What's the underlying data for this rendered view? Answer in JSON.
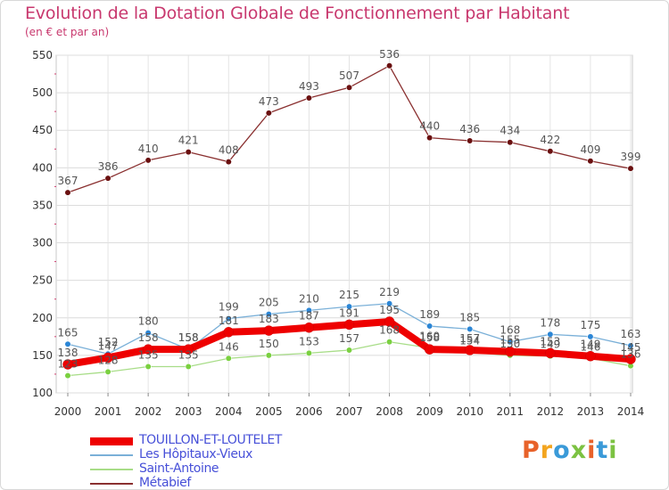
{
  "title": "Evolution de la Dotation Globale de Fonctionnement par Habitant",
  "subtitle": "(en € et par an)",
  "logo": {
    "text": "Proxiti",
    "colors": [
      "#e8622a",
      "#f3a51f",
      "#3a9ad8",
      "#7cc242",
      "#e8622a",
      "#3a9ad8",
      "#7cc242"
    ]
  },
  "chart_data": {
    "type": "line",
    "title": "Evolution de la Dotation Globale de Fonctionnement par Habitant",
    "subtitle": "(en € et par an)",
    "x": [
      "2000",
      "2001",
      "2002",
      "2003",
      "2004",
      "2005",
      "2006",
      "2007",
      "2008",
      "2009",
      "2010",
      "2011",
      "2012",
      "2013",
      "2014"
    ],
    "ylim": [
      100,
      550
    ],
    "yticks": [
      100,
      150,
      200,
      250,
      300,
      350,
      400,
      450,
      500,
      550
    ],
    "grid": true,
    "series": [
      {
        "name": "TOUILLON-ET-LOUTELET",
        "color": "#ee0000",
        "marker": "#ee0000",
        "values": [
          138,
          147,
          158,
          158,
          181,
          183,
          187,
          191,
          195,
          158,
          157,
          155,
          153,
          149,
          145
        ],
        "labels": [
          "138",
          "147",
          "158",
          "158",
          "181",
          "183",
          "187",
          "191",
          "195",
          "158",
          "157",
          "155",
          "153",
          "149",
          "145"
        ]
      },
      {
        "name": "Les Hôpitaux-Vieux",
        "color": "#7ab0d8",
        "marker": "#2b86d6",
        "values": [
          165,
          152,
          180,
          158,
          199,
          205,
          210,
          215,
          219,
          189,
          185,
          168,
          178,
          175,
          163
        ],
        "labels": [
          "165",
          "152",
          "180",
          "158",
          "199",
          "205",
          "210",
          "215",
          "219",
          "189",
          "185",
          "168",
          "178",
          "175",
          "163"
        ]
      },
      {
        "name": "Saint-Antoine",
        "color": "#a8dd88",
        "marker": "#7ad040",
        "values": [
          123,
          128,
          135,
          135,
          146,
          150,
          153,
          157,
          168,
          160,
          154,
          150,
          149,
          146,
          136
        ],
        "labels": [
          "123",
          "128",
          "135",
          "135",
          "146",
          "150",
          "153",
          "157",
          "168",
          "160",
          "154",
          "150",
          "149",
          "146",
          "136"
        ]
      },
      {
        "name": "Métabief",
        "color": "#8a3030",
        "marker": "#6a1010",
        "values": [
          367,
          386,
          410,
          421,
          408,
          473,
          493,
          507,
          536,
          440,
          436,
          434,
          422,
          409,
          399
        ],
        "labels": [
          "367",
          "386",
          "410",
          "421",
          "408",
          "473",
          "493",
          "507",
          "536",
          "440",
          "436",
          "434",
          "422",
          "409",
          "399"
        ]
      }
    ]
  }
}
